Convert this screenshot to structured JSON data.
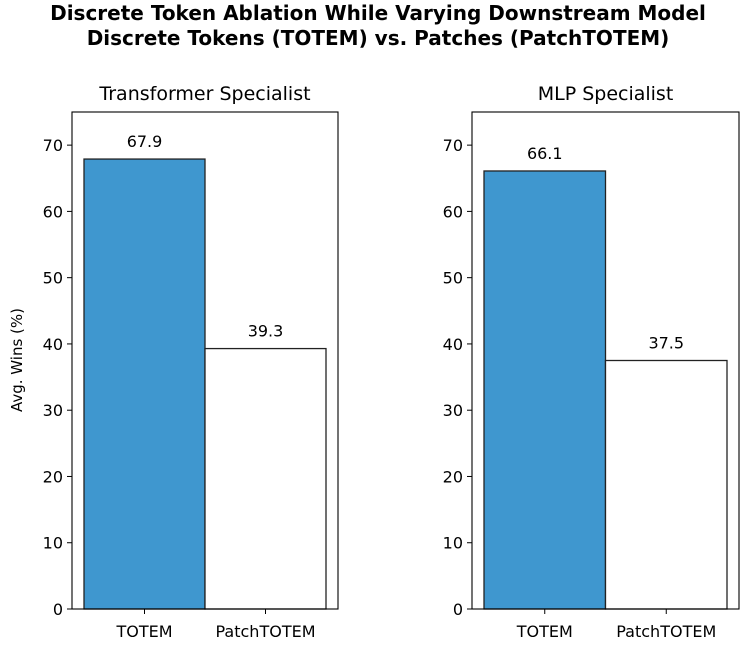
{
  "figure": {
    "title_line1": "Discrete Token Ablation While Varying Downstream Model",
    "title_line2": "Discrete Tokens (TOTEM) vs. Patches (PatchTOTEM)",
    "ylabel": "Avg. Wins (%)"
  },
  "chart_data": [
    {
      "type": "bar",
      "title": "Transformer Specialist",
      "categories": [
        "TOTEM",
        "PatchTOTEM"
      ],
      "values": [
        67.9,
        39.3
      ],
      "data_labels": [
        "67.9",
        "39.3"
      ],
      "ylabel": "Avg. Wins (%)",
      "xlabel": "",
      "ylim": [
        0,
        75
      ],
      "yticks": [
        0,
        10,
        20,
        30,
        40,
        50,
        60,
        70
      ],
      "bar_colors": [
        "#3f97cf",
        "#ffffff"
      ],
      "grid": false
    },
    {
      "type": "bar",
      "title": "MLP Specialist",
      "categories": [
        "TOTEM",
        "PatchTOTEM"
      ],
      "values": [
        66.1,
        37.5
      ],
      "data_labels": [
        "66.1",
        "37.5"
      ],
      "ylabel": "",
      "xlabel": "",
      "ylim": [
        0,
        75
      ],
      "yticks": [
        0,
        10,
        20,
        30,
        40,
        50,
        60,
        70
      ],
      "bar_colors": [
        "#3f97cf",
        "#ffffff"
      ],
      "grid": false
    }
  ]
}
